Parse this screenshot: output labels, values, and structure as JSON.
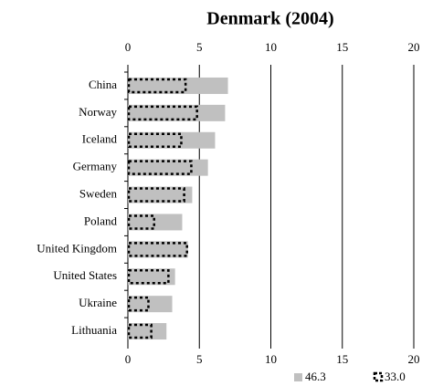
{
  "chart_data": {
    "type": "hbar",
    "title": "Denmark (2004)",
    "categories": [
      "China",
      "Norway",
      "Iceland",
      "Germany",
      "Sweden",
      "Poland",
      "United Kingdom",
      "United States",
      "Ukraine",
      "Lithuania"
    ],
    "series": [
      {
        "name": "46.3",
        "color": "#c0c0c0",
        "values": [
          7.0,
          6.8,
          6.1,
          5.6,
          4.5,
          3.8,
          4.2,
          3.3,
          3.1,
          2.7
        ]
      },
      {
        "name": "33.0",
        "color": "#000000",
        "values": [
          4.1,
          4.9,
          3.8,
          4.5,
          4.0,
          1.9,
          4.2,
          2.9,
          1.5,
          1.7
        ]
      }
    ],
    "xlim": [
      0,
      20
    ],
    "xticks": [
      0,
      5,
      10,
      15,
      20
    ],
    "grid": true,
    "legend": "bottom-right"
  }
}
